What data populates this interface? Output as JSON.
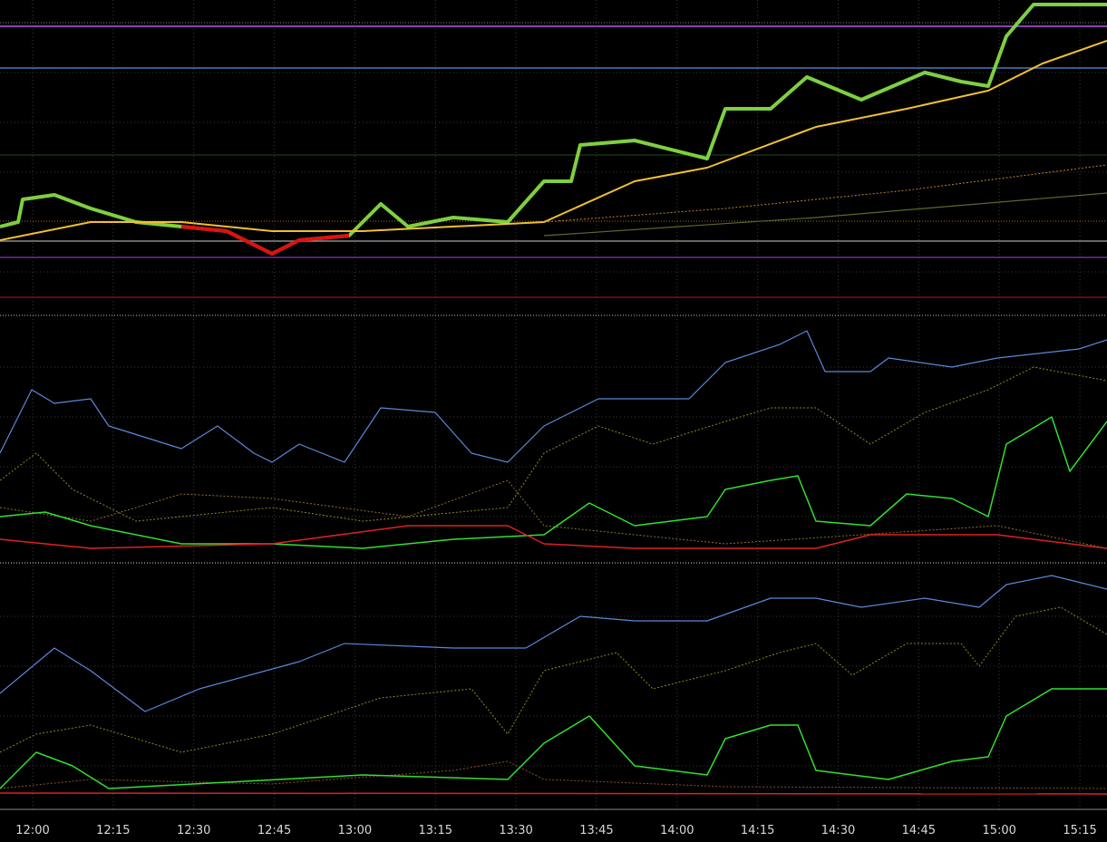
{
  "time_axis": {
    "labels": [
      "12:00",
      "12:15",
      "12:30",
      "12:45",
      "13:00",
      "13:15",
      "13:30",
      "13:45",
      "14:00",
      "14:15",
      "14:30",
      "14:45",
      "15:00",
      "15:15"
    ]
  }
}
